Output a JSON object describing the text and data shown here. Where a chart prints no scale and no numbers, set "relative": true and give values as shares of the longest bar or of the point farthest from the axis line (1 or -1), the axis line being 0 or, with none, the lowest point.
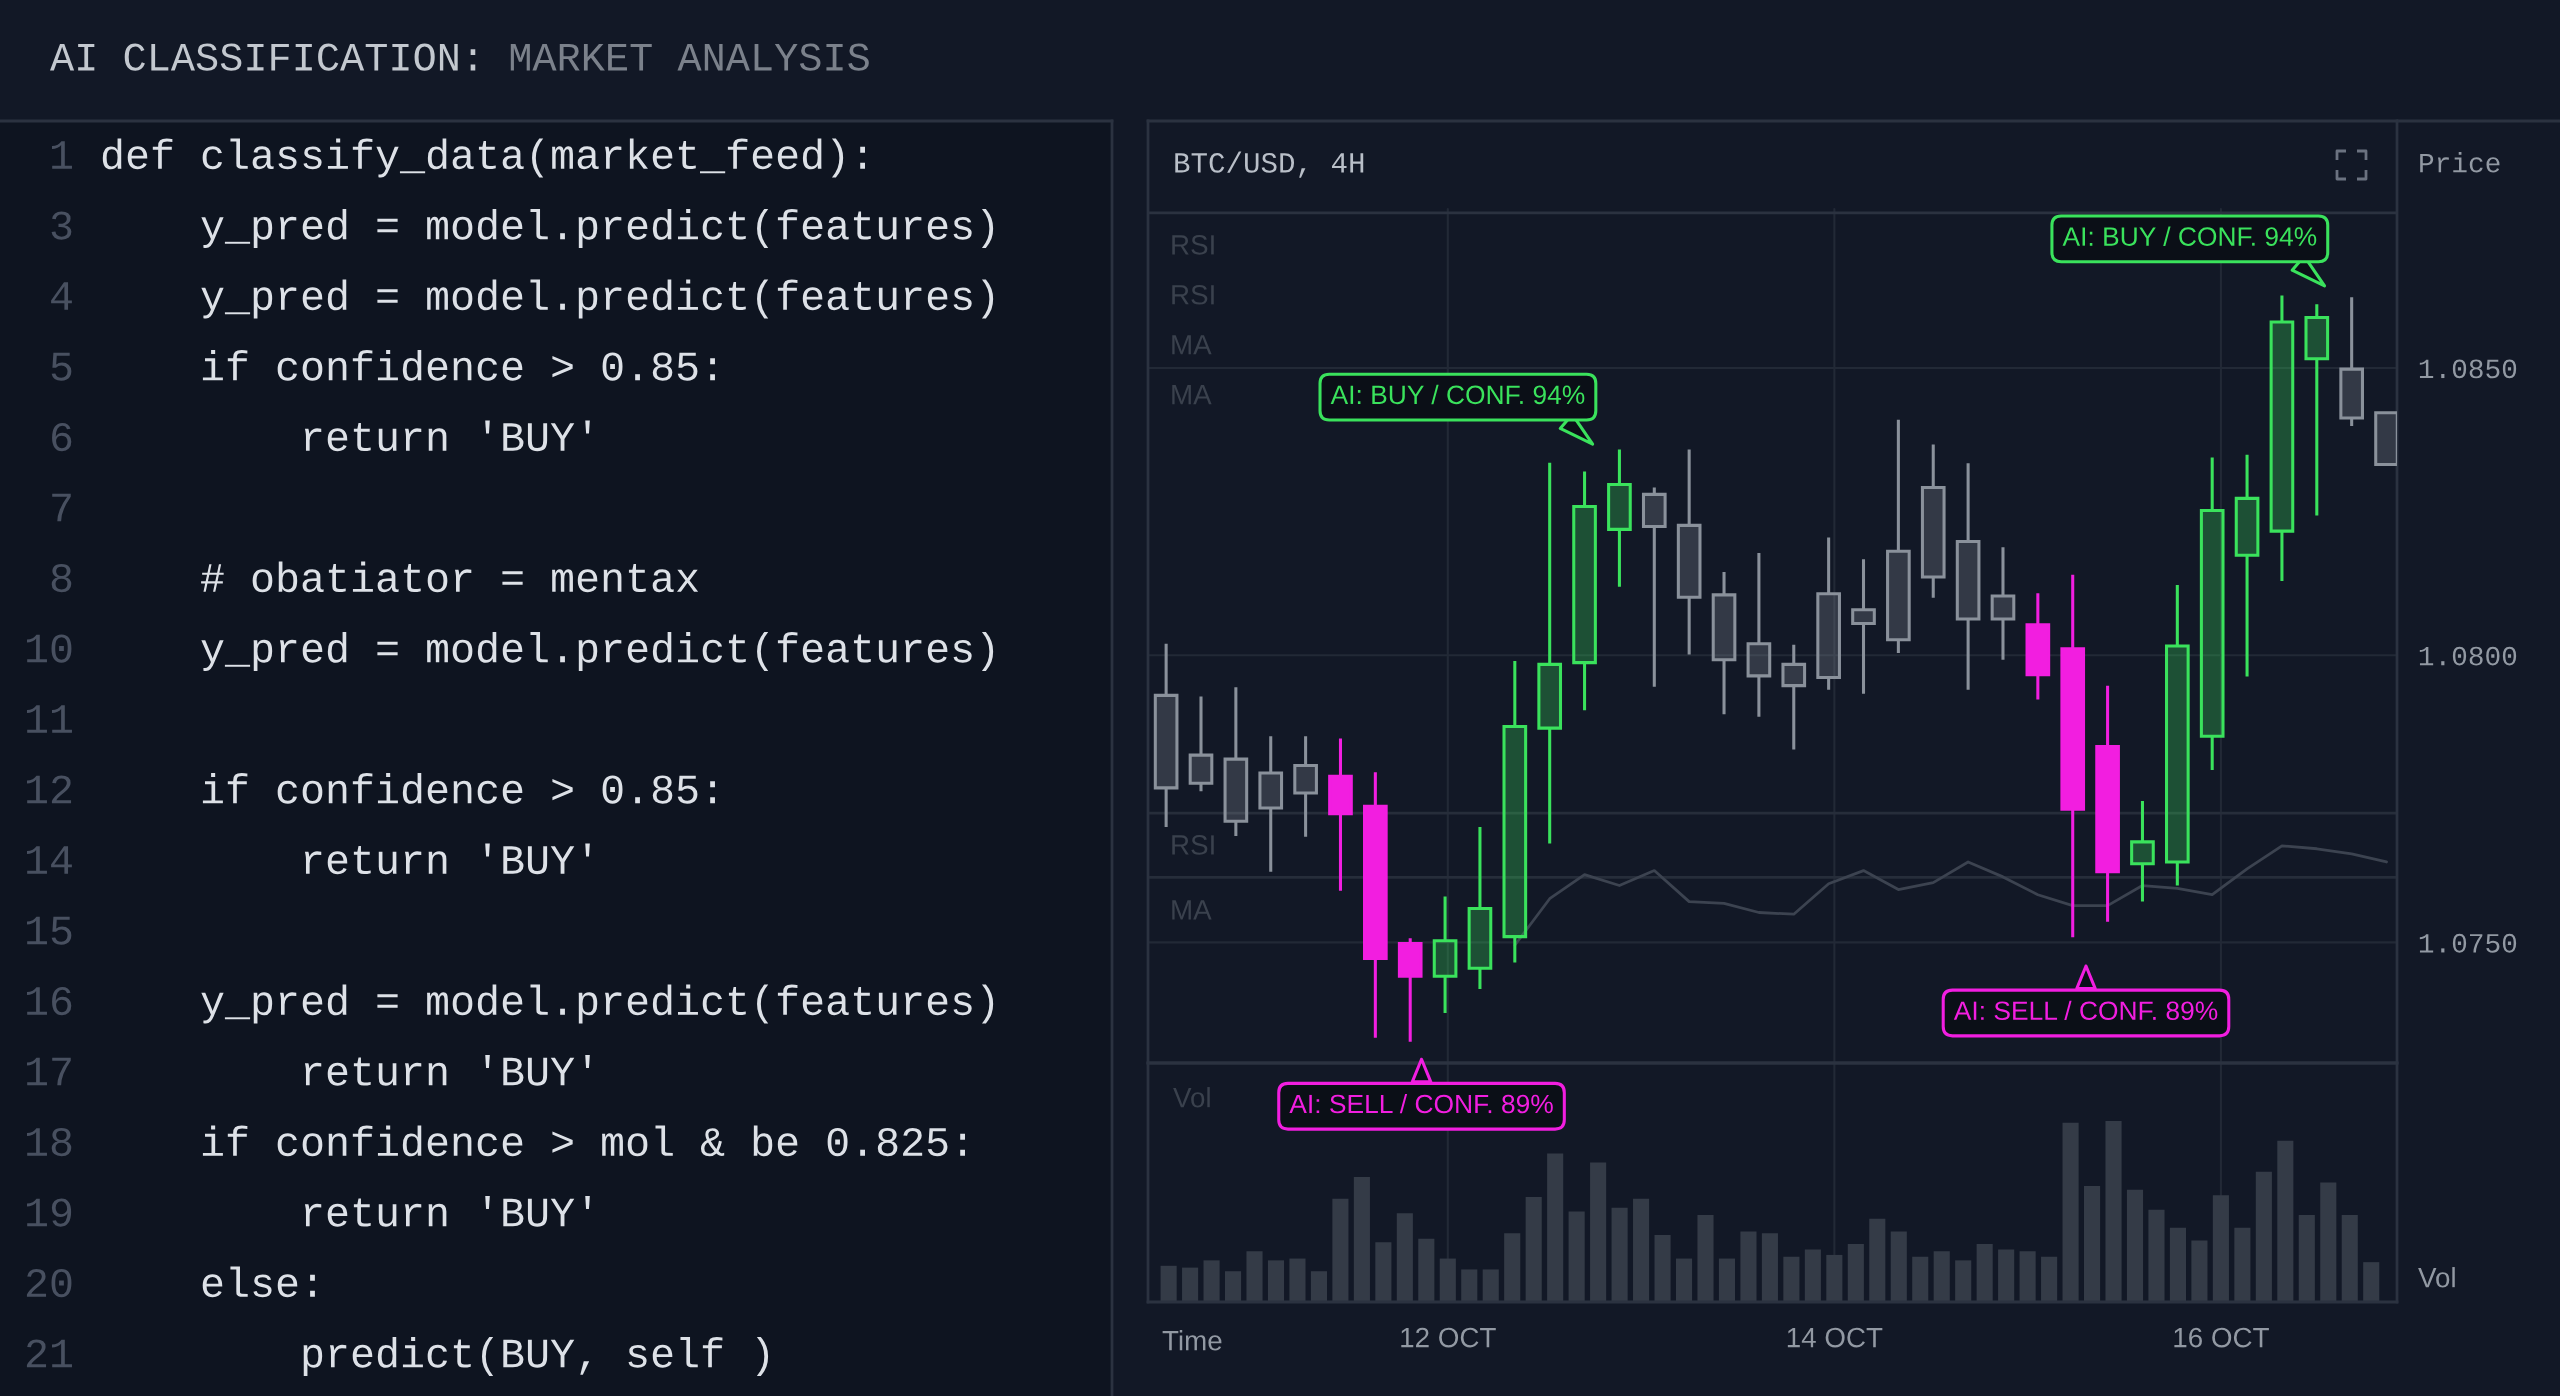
{
  "chart_data": [
    {
      "type": "other",
      "title": "AI CLASSIFICATION:",
      "subtitle": "MARKET ANALYSIS",
      "annotations": [
        "1 def classify_data(market_feed):",
        "3     y_pred = model.predict(features)",
        "4     y_pred = model.predict(features)",
        "5     if confidence > 0.85:",
        "6         return 'BUY'",
        "7",
        "8     # obatiator = mentax",
        "10     y_pred = model.predict(features)",
        "11",
        "12     if confidence > 0.85:",
        "14         return 'BUY'",
        "15",
        "16     y_pred = model.predict(features)",
        "17         return 'BUY'",
        "18     if confidence > mol & be 0.825:",
        "19         return 'BUY'",
        "20     else:",
        "21         predict(BUY, self )"
      ]
    },
    {
      "type": "candlestick",
      "title": "BTC/USD, 4H",
      "ylabel": "Price",
      "categories": [
        null,
        null,
        null,
        null,
        null,
        null,
        null,
        null,
        null,
        null,
        null,
        null,
        null,
        null,
        null,
        null,
        null,
        null,
        null,
        null,
        null,
        null,
        null,
        null,
        null,
        null,
        null,
        null,
        null,
        null,
        null,
        null,
        null,
        null,
        null,
        null
      ],
      "ohlc": [
        [
          1.07769,
          1.0802,
          1.07701,
          1.0793
        ],
        [
          1.07777,
          1.07928,
          1.07763,
          1.07826
        ],
        [
          1.07711,
          1.07944,
          1.07685,
          1.07819
        ],
        [
          1.07734,
          1.07859,
          1.07623,
          1.07795
        ],
        [
          1.0776,
          1.07859,
          1.07684,
          1.07808
        ],
        [
          1.07789,
          1.07855,
          1.0759,
          1.07724
        ],
        [
          1.07737,
          1.07796,
          1.07334,
          1.07472
        ],
        [
          1.07498,
          1.07507,
          1.07327,
          1.07441
        ],
        [
          1.07441,
          1.0758,
          1.07377,
          1.07503
        ],
        [
          1.07455,
          1.07701,
          1.07419,
          1.07559
        ],
        [
          1.0751,
          1.0799,
          1.07465,
          1.07876
        ],
        [
          1.07873,
          1.08335,
          1.07672,
          1.07984
        ],
        [
          1.07987,
          1.0832,
          1.07904,
          1.08259
        ],
        [
          1.08219,
          1.08358,
          1.08119,
          1.08297
        ],
        [
          1.08224,
          1.08292,
          1.07945,
          1.0828
        ],
        [
          1.08101,
          1.08358,
          1.08001,
          1.08226
        ],
        [
          1.07992,
          1.08145,
          1.07897,
          1.08105
        ],
        [
          1.07964,
          1.08178,
          1.07893,
          1.0802
        ],
        [
          1.07947,
          1.08018,
          1.07836,
          1.07984
        ],
        [
          1.07961,
          1.08205,
          1.0794,
          1.08107
        ],
        [
          1.08055,
          1.08167,
          1.07933,
          1.08079
        ],
        [
          1.08027,
          1.0841,
          1.08004,
          1.08181
        ],
        [
          1.08136,
          1.08367,
          1.081,
          1.08292
        ],
        [
          1.08063,
          1.08334,
          1.0794,
          1.08198
        ],
        [
          1.08063,
          1.08188,
          1.07992,
          1.08103
        ],
        [
          1.08053,
          1.08108,
          1.07923,
          1.07966
        ],
        [
          1.08011,
          1.0814,
          1.07509,
          1.07732
        ],
        [
          1.07841,
          1.07947,
          1.07536,
          1.07623
        ],
        [
          1.07637,
          1.07746,
          1.07571,
          1.07675
        ],
        [
          1.0764,
          1.08122,
          1.07599,
          1.08016
        ],
        [
          1.07859,
          1.08344,
          1.078,
          1.08252
        ],
        [
          1.08174,
          1.08349,
          1.07963,
          1.08273
        ],
        [
          1.08216,
          1.08626,
          1.08129,
          1.0858
        ],
        [
          1.08516,
          1.08611,
          1.08243,
          1.08588
        ],
        [
          1.08413,
          1.08623,
          1.08399,
          1.08498
        ],
        [
          1.08332,
          1.08422,
          1.08332,
          1.08422
        ]
      ],
      "colors": [
        "#8a919b",
        "#8a919b",
        "#8a919b",
        "#8a919b",
        "#8a919b",
        "#f21ee0",
        "#f21ee0",
        "#f21ee0",
        "#3ae25c",
        "#3ae25c",
        "#3ae25c",
        "#3ae25c",
        "#3ae25c",
        "#3ae25c",
        "#8a919b",
        "#8a919b",
        "#8a919b",
        "#8a919b",
        "#8a919b",
        "#8a919b",
        "#8a919b",
        "#8a919b",
        "#8a919b",
        "#8a919b",
        "#8a919b",
        "#f21ee0",
        "#f21ee0",
        "#f21ee0",
        "#3ae25c",
        "#3ae25c",
        "#3ae25c",
        "#3ae25c",
        "#3ae25c",
        "#3ae25c",
        "#8a919b",
        "#8a919b"
      ],
      "series": [
        {
          "type": "line",
          "color": "#3c4350",
          "values": [
            null,
            null,
            null,
            null,
            null,
            null,
            null,
            null,
            null,
            null,
            1.07495,
            1.07576,
            1.07618,
            1.07599,
            1.07625,
            1.07571,
            1.07568,
            1.07552,
            1.07549,
            1.07602,
            1.07625,
            1.07592,
            1.07604,
            1.0764,
            1.07614,
            1.07583,
            1.07564,
            1.07564,
            1.07599,
            1.07594,
            1.07583,
            1.07628,
            1.07668,
            1.07663,
            1.07654,
            1.0764
          ]
        }
      ],
      "ylim": [
        1.0729,
        1.0893
      ],
      "yticks": [
        {
          "value": 1.075,
          "label": "1.0750"
        },
        {
          "value": 1.08,
          "label": "1.0800"
        },
        {
          "value": 1.085,
          "label": "1.0850"
        }
      ],
      "grid": "y",
      "tick_labels": "y",
      "ref_lines": [
        {
          "axis": "y",
          "value": 1.0877,
          "color": "#2b3240"
        },
        {
          "axis": "y",
          "value": 1.07725,
          "color": "#262d3a"
        },
        {
          "axis": "y",
          "value": 1.07613,
          "color": "#262d3a"
        }
      ],
      "annotations": [
        "RSI",
        "RSI",
        "MA",
        "MA",
        "AI: BUY / CONF. 94%",
        "AI: BUY / CONF. 94%",
        "AI: SELL / CONF. 89%",
        "AI: SELL / CONF. 89%",
        "RSI",
        "MA"
      ]
    },
    {
      "type": "bar",
      "title": "Vol",
      "xlabel": "Time",
      "ylabel": "Vol",
      "relative": true,
      "color": "#343b47",
      "categories": [
        null,
        null,
        null,
        null,
        null,
        null,
        null,
        null,
        null,
        null,
        null,
        null,
        null,
        "12 OCT",
        null,
        null,
        null,
        null,
        null,
        null,
        null,
        null,
        null,
        null,
        null,
        null,
        null,
        null,
        null,
        null,
        null,
        "14 OCT",
        null,
        null,
        null,
        null,
        null,
        null,
        null,
        null,
        null,
        null,
        null,
        null,
        null,
        null,
        null,
        null,
        null,
        "16 OCT",
        null,
        null,
        null,
        null,
        null,
        null,
        null
      ],
      "values": [
        0.2,
        0.19,
        0.23,
        0.17,
        0.28,
        0.23,
        0.24,
        0.17,
        0.57,
        0.69,
        0.33,
        0.49,
        0.35,
        0.24,
        0.18,
        0.18,
        0.38,
        0.58,
        0.82,
        0.5,
        0.77,
        0.52,
        0.57,
        0.37,
        0.24,
        0.48,
        0.24,
        0.39,
        0.38,
        0.25,
        0.29,
        0.26,
        0.32,
        0.46,
        0.39,
        0.25,
        0.28,
        0.23,
        0.32,
        0.29,
        0.28,
        0.25,
        0.99,
        0.64,
        1,
        0.62,
        0.51,
        0.41,
        0.34,
        0.59,
        0.41,
        0.72,
        0.89,
        0.48,
        0.66,
        0.48,
        0.22
      ],
      "grid": "x",
      "tick_labels": "x"
    }
  ]
}
